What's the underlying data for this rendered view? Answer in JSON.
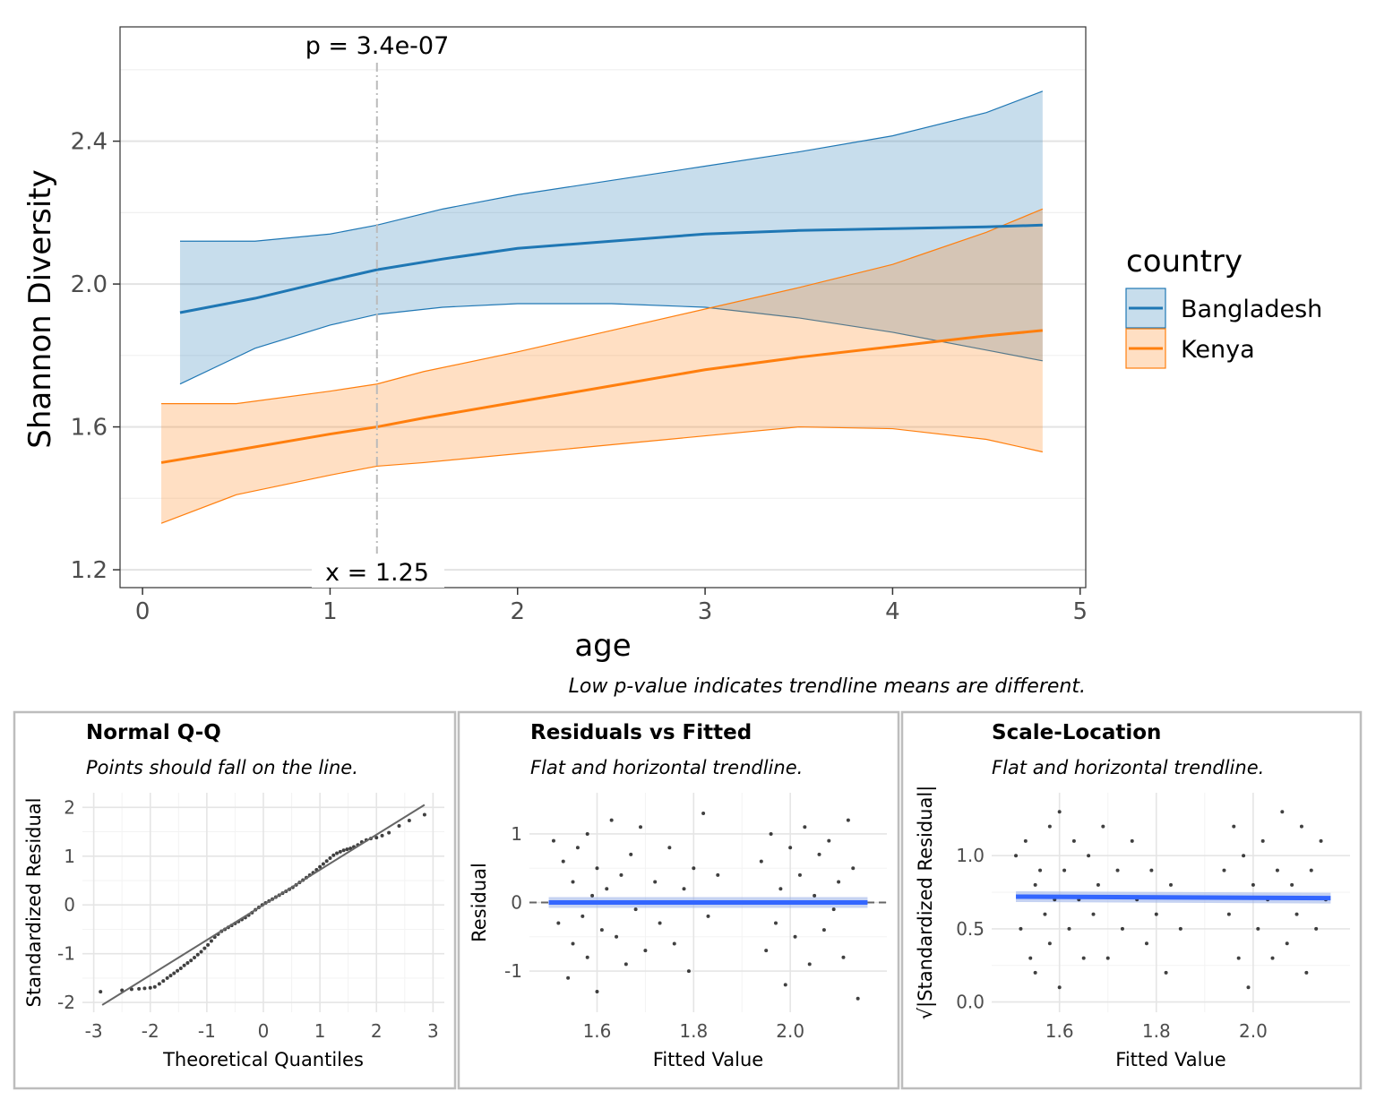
{
  "main": {
    "caption": "Low p-value indicates trendline means are different.",
    "p_label": "p = 3.4e-07",
    "x_label": "x = 1.25",
    "legend_title": "country"
  },
  "diag": {
    "qq": {
      "title": "Normal Q-Q",
      "subtitle": "Points should fall on the line."
    },
    "rvf": {
      "title": "Residuals vs Fitted",
      "subtitle": "Flat and horizontal trendline."
    },
    "sl": {
      "title": "Scale-Location",
      "subtitle": "Flat and horizontal trendline."
    }
  },
  "chart_data": [
    {
      "type": "line",
      "xlabel": "age",
      "ylabel": "Shannon Diversity",
      "xlim": [
        -0.12,
        5.03
      ],
      "ylim": [
        1.15,
        2.72
      ],
      "x_ticks": [
        0,
        1,
        2,
        3,
        4,
        5
      ],
      "y_ticks": [
        1.2,
        1.6,
        2.0,
        2.4
      ],
      "grid": true,
      "legend": "right",
      "vline_x": 1.25,
      "series": [
        {
          "name": "Bangladesh",
          "color": "#1f77b4",
          "x": [
            0.2,
            0.6,
            1.0,
            1.25,
            1.6,
            2.0,
            2.5,
            3.0,
            3.5,
            4.0,
            4.5,
            4.8
          ],
          "y": [
            1.92,
            1.96,
            2.01,
            2.04,
            2.07,
            2.1,
            2.12,
            2.14,
            2.15,
            2.155,
            2.16,
            2.165
          ],
          "lower": [
            1.72,
            1.82,
            1.885,
            1.915,
            1.935,
            1.945,
            1.945,
            1.935,
            1.905,
            1.865,
            1.815,
            1.785
          ],
          "upper": [
            2.12,
            2.12,
            2.14,
            2.165,
            2.21,
            2.25,
            2.29,
            2.33,
            2.37,
            2.415,
            2.48,
            2.54
          ]
        },
        {
          "name": "Kenya",
          "color": "#ff7f0e",
          "x": [
            0.1,
            0.5,
            1.0,
            1.25,
            1.5,
            2.0,
            2.5,
            3.0,
            3.5,
            4.0,
            4.5,
            4.8
          ],
          "y": [
            1.5,
            1.535,
            1.58,
            1.6,
            1.625,
            1.67,
            1.715,
            1.76,
            1.795,
            1.825,
            1.855,
            1.87
          ],
          "lower": [
            1.33,
            1.41,
            1.465,
            1.49,
            1.5,
            1.525,
            1.55,
            1.575,
            1.6,
            1.595,
            1.565,
            1.53
          ],
          "upper": [
            1.665,
            1.665,
            1.7,
            1.72,
            1.755,
            1.81,
            1.87,
            1.93,
            1.99,
            2.055,
            2.145,
            2.21
          ]
        }
      ]
    },
    {
      "type": "scatter",
      "title": "Normal Q-Q",
      "xlabel": "Theoretical Quantiles",
      "ylabel": "Standardized Residual",
      "xlim": [
        -3.2,
        3.2
      ],
      "ylim": [
        -2.2,
        2.3
      ],
      "x_ticks": [
        -3,
        -2,
        -1,
        0,
        1,
        2,
        3
      ],
      "y_ticks": [
        -2,
        -1,
        0,
        1,
        2
      ],
      "reference_line": {
        "intercept": 0,
        "slope": 0.72
      },
      "points": [
        [
          -2.88,
          -1.78
        ],
        [
          -2.5,
          -1.75
        ],
        [
          -2.33,
          -1.73
        ],
        [
          -2.2,
          -1.72
        ],
        [
          -2.1,
          -1.71
        ],
        [
          -2.0,
          -1.7
        ],
        [
          -1.92,
          -1.68
        ],
        [
          -1.84,
          -1.62
        ],
        [
          -1.77,
          -1.56
        ],
        [
          -1.7,
          -1.5
        ],
        [
          -1.64,
          -1.45
        ],
        [
          -1.58,
          -1.4
        ],
        [
          -1.52,
          -1.35
        ],
        [
          -1.46,
          -1.3
        ],
        [
          -1.4,
          -1.24
        ],
        [
          -1.34,
          -1.19
        ],
        [
          -1.28,
          -1.14
        ],
        [
          -1.22,
          -1.08
        ],
        [
          -1.16,
          -1.02
        ],
        [
          -1.1,
          -0.96
        ],
        [
          -1.04,
          -0.89
        ],
        [
          -0.98,
          -0.82
        ],
        [
          -0.92,
          -0.74
        ],
        [
          -0.86,
          -0.66
        ],
        [
          -0.8,
          -0.6
        ],
        [
          -0.74,
          -0.54
        ],
        [
          -0.68,
          -0.5
        ],
        [
          -0.62,
          -0.46
        ],
        [
          -0.56,
          -0.42
        ],
        [
          -0.5,
          -0.38
        ],
        [
          -0.44,
          -0.34
        ],
        [
          -0.38,
          -0.3
        ],
        [
          -0.32,
          -0.26
        ],
        [
          -0.26,
          -0.21
        ],
        [
          -0.2,
          -0.16
        ],
        [
          -0.14,
          -0.1
        ],
        [
          -0.08,
          -0.05
        ],
        [
          -0.02,
          0.0
        ],
        [
          0.04,
          0.04
        ],
        [
          0.1,
          0.08
        ],
        [
          0.16,
          0.12
        ],
        [
          0.22,
          0.16
        ],
        [
          0.28,
          0.2
        ],
        [
          0.34,
          0.24
        ],
        [
          0.4,
          0.28
        ],
        [
          0.46,
          0.32
        ],
        [
          0.52,
          0.36
        ],
        [
          0.58,
          0.41
        ],
        [
          0.64,
          0.46
        ],
        [
          0.7,
          0.51
        ],
        [
          0.76,
          0.56
        ],
        [
          0.82,
          0.61
        ],
        [
          0.88,
          0.66
        ],
        [
          0.94,
          0.72
        ],
        [
          1.0,
          0.78
        ],
        [
          1.06,
          0.84
        ],
        [
          1.12,
          0.9
        ],
        [
          1.18,
          0.96
        ],
        [
          1.24,
          1.02
        ],
        [
          1.3,
          1.06
        ],
        [
          1.36,
          1.09
        ],
        [
          1.42,
          1.12
        ],
        [
          1.48,
          1.14
        ],
        [
          1.54,
          1.16
        ],
        [
          1.6,
          1.19
        ],
        [
          1.67,
          1.23
        ],
        [
          1.74,
          1.29
        ],
        [
          1.82,
          1.33
        ],
        [
          1.9,
          1.36
        ],
        [
          2.0,
          1.38
        ],
        [
          2.1,
          1.42
        ],
        [
          2.22,
          1.48
        ],
        [
          2.4,
          1.62
        ],
        [
          2.58,
          1.73
        ],
        [
          2.85,
          1.85
        ]
      ]
    },
    {
      "type": "scatter",
      "title": "Residuals vs Fitted",
      "xlabel": "Fitted Value",
      "ylabel": "Residual",
      "xlim": [
        1.46,
        2.2
      ],
      "ylim": [
        -1.6,
        1.6
      ],
      "x_ticks": [
        1.6,
        1.8,
        2.0
      ],
      "y_ticks": [
        -1,
        0,
        1
      ],
      "trend": {
        "x": [
          1.5,
          2.16
        ],
        "y": [
          0.0,
          0.0
        ]
      },
      "points": [
        [
          1.51,
          0.9
        ],
        [
          1.52,
          -0.3
        ],
        [
          1.53,
          0.6
        ],
        [
          1.54,
          -1.1
        ],
        [
          1.55,
          0.3
        ],
        [
          1.55,
          -0.6
        ],
        [
          1.56,
          0.8
        ],
        [
          1.57,
          -0.2
        ],
        [
          1.58,
          1.0
        ],
        [
          1.58,
          -0.8
        ],
        [
          1.59,
          0.1
        ],
        [
          1.6,
          0.5
        ],
        [
          1.6,
          -1.3
        ],
        [
          1.61,
          -0.4
        ],
        [
          1.62,
          0.2
        ],
        [
          1.63,
          1.2
        ],
        [
          1.64,
          -0.5
        ],
        [
          1.65,
          0.4
        ],
        [
          1.66,
          -0.9
        ],
        [
          1.67,
          0.7
        ],
        [
          1.68,
          -0.1
        ],
        [
          1.69,
          1.1
        ],
        [
          1.7,
          -0.7
        ],
        [
          1.72,
          0.3
        ],
        [
          1.73,
          -0.3
        ],
        [
          1.75,
          0.8
        ],
        [
          1.76,
          -0.6
        ],
        [
          1.78,
          0.2
        ],
        [
          1.79,
          -1.0
        ],
        [
          1.8,
          0.5
        ],
        [
          1.82,
          1.3
        ],
        [
          1.83,
          -0.2
        ],
        [
          1.85,
          0.4
        ],
        [
          1.94,
          0.6
        ],
        [
          1.95,
          -0.7
        ],
        [
          1.96,
          1.0
        ],
        [
          1.97,
          -0.3
        ],
        [
          1.98,
          0.2
        ],
        [
          1.99,
          -1.2
        ],
        [
          2.0,
          0.8
        ],
        [
          2.01,
          -0.5
        ],
        [
          2.02,
          0.4
        ],
        [
          2.03,
          1.1
        ],
        [
          2.04,
          -0.9
        ],
        [
          2.05,
          0.1
        ],
        [
          2.06,
          0.7
        ],
        [
          2.07,
          -0.4
        ],
        [
          2.08,
          0.9
        ],
        [
          2.09,
          -0.1
        ],
        [
          2.1,
          0.3
        ],
        [
          2.11,
          -0.8
        ],
        [
          2.12,
          1.2
        ],
        [
          2.13,
          0.5
        ],
        [
          2.14,
          -1.4
        ],
        [
          2.15,
          0.0
        ]
      ]
    },
    {
      "type": "scatter",
      "title": "Scale-Location",
      "xlabel": "Fitted Value",
      "ylabel": "√|Standardized Residual|",
      "xlim": [
        1.46,
        2.2
      ],
      "ylim": [
        -0.07,
        1.43
      ],
      "x_ticks": [
        1.6,
        1.8,
        2.0
      ],
      "y_ticks": [
        0.0,
        0.5,
        1.0
      ],
      "trend": {
        "x": [
          1.51,
          2.16
        ],
        "y": [
          0.72,
          0.71
        ]
      },
      "points": [
        [
          1.51,
          1.0
        ],
        [
          1.52,
          0.5
        ],
        [
          1.53,
          1.1
        ],
        [
          1.54,
          0.3
        ],
        [
          1.55,
          0.8
        ],
        [
          1.55,
          0.2
        ],
        [
          1.56,
          0.9
        ],
        [
          1.57,
          0.6
        ],
        [
          1.58,
          1.2
        ],
        [
          1.58,
          0.4
        ],
        [
          1.59,
          0.7
        ],
        [
          1.6,
          1.3
        ],
        [
          1.6,
          0.1
        ],
        [
          1.61,
          0.9
        ],
        [
          1.62,
          0.5
        ],
        [
          1.63,
          1.1
        ],
        [
          1.64,
          0.7
        ],
        [
          1.65,
          0.3
        ],
        [
          1.66,
          1.0
        ],
        [
          1.67,
          0.6
        ],
        [
          1.68,
          0.8
        ],
        [
          1.69,
          1.2
        ],
        [
          1.7,
          0.3
        ],
        [
          1.72,
          0.9
        ],
        [
          1.73,
          0.5
        ],
        [
          1.75,
          1.1
        ],
        [
          1.76,
          0.7
        ],
        [
          1.78,
          0.4
        ],
        [
          1.79,
          0.9
        ],
        [
          1.8,
          0.6
        ],
        [
          1.82,
          0.2
        ],
        [
          1.83,
          0.8
        ],
        [
          1.85,
          0.5
        ],
        [
          1.94,
          0.9
        ],
        [
          1.95,
          0.6
        ],
        [
          1.96,
          1.2
        ],
        [
          1.97,
          0.3
        ],
        [
          1.98,
          1.0
        ],
        [
          1.99,
          0.1
        ],
        [
          2.0,
          0.8
        ],
        [
          2.01,
          0.5
        ],
        [
          2.02,
          1.1
        ],
        [
          2.03,
          0.7
        ],
        [
          2.04,
          0.3
        ],
        [
          2.05,
          0.9
        ],
        [
          2.06,
          1.3
        ],
        [
          2.07,
          0.4
        ],
        [
          2.08,
          0.8
        ],
        [
          2.09,
          0.6
        ],
        [
          2.1,
          1.2
        ],
        [
          2.11,
          0.2
        ],
        [
          2.12,
          0.9
        ],
        [
          2.13,
          0.5
        ],
        [
          2.14,
          1.1
        ],
        [
          2.15,
          0.7
        ]
      ]
    }
  ]
}
